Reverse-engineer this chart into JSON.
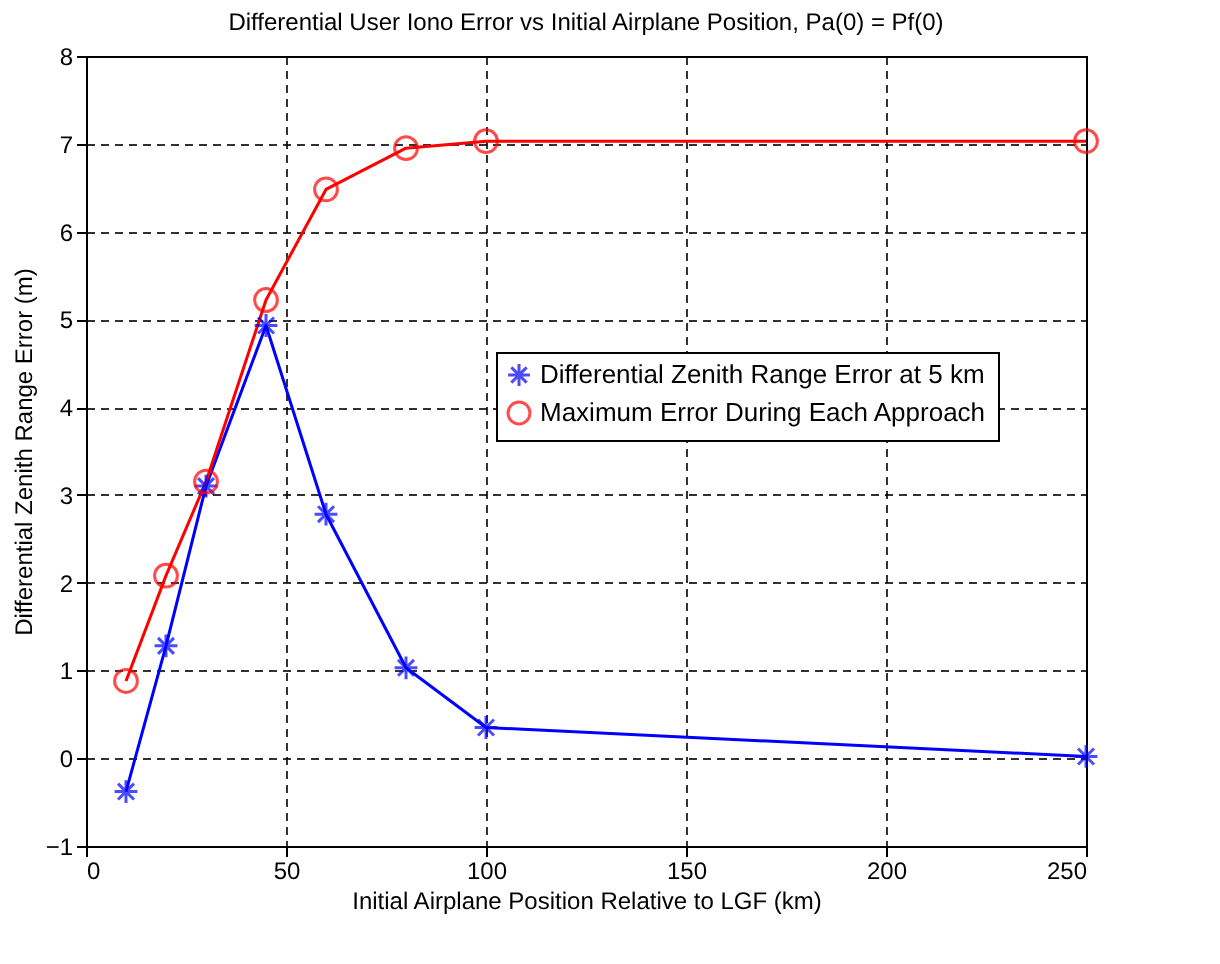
{
  "chart_data": {
    "type": "line",
    "title": "Differential User Iono Error vs Initial Airplane Position, Pa(0) = Pf(0)",
    "xlabel": "Initial Airplane Position Relative to LGF (km)",
    "ylabel": "Differential Zenith Range Error (m)",
    "x": [
      10,
      20,
      30,
      45,
      60,
      80,
      100,
      250
    ],
    "series": [
      {
        "name": "Differential Zenith Range Error at 5 km",
        "color": "#0000ff",
        "marker": "cross",
        "values": [
          -0.38,
          1.28,
          3.1,
          4.93,
          2.78,
          1.03,
          0.35,
          0.02
        ]
      },
      {
        "name": "Maximum Error During Each Approach",
        "color": "#ff0000",
        "marker": "circle",
        "values": [
          0.88,
          2.08,
          3.15,
          5.22,
          6.48,
          6.95,
          7.03,
          7.03
        ]
      }
    ],
    "xlim": [
      0,
      250
    ],
    "xticks": [
      0,
      50,
      100,
      150,
      200,
      250
    ],
    "ylim": [
      -1,
      8
    ],
    "yticks": [
      -1,
      0,
      1,
      2,
      3,
      4,
      5,
      6,
      7,
      8
    ],
    "grid": true,
    "legend": "right",
    "line_style": "solid"
  }
}
